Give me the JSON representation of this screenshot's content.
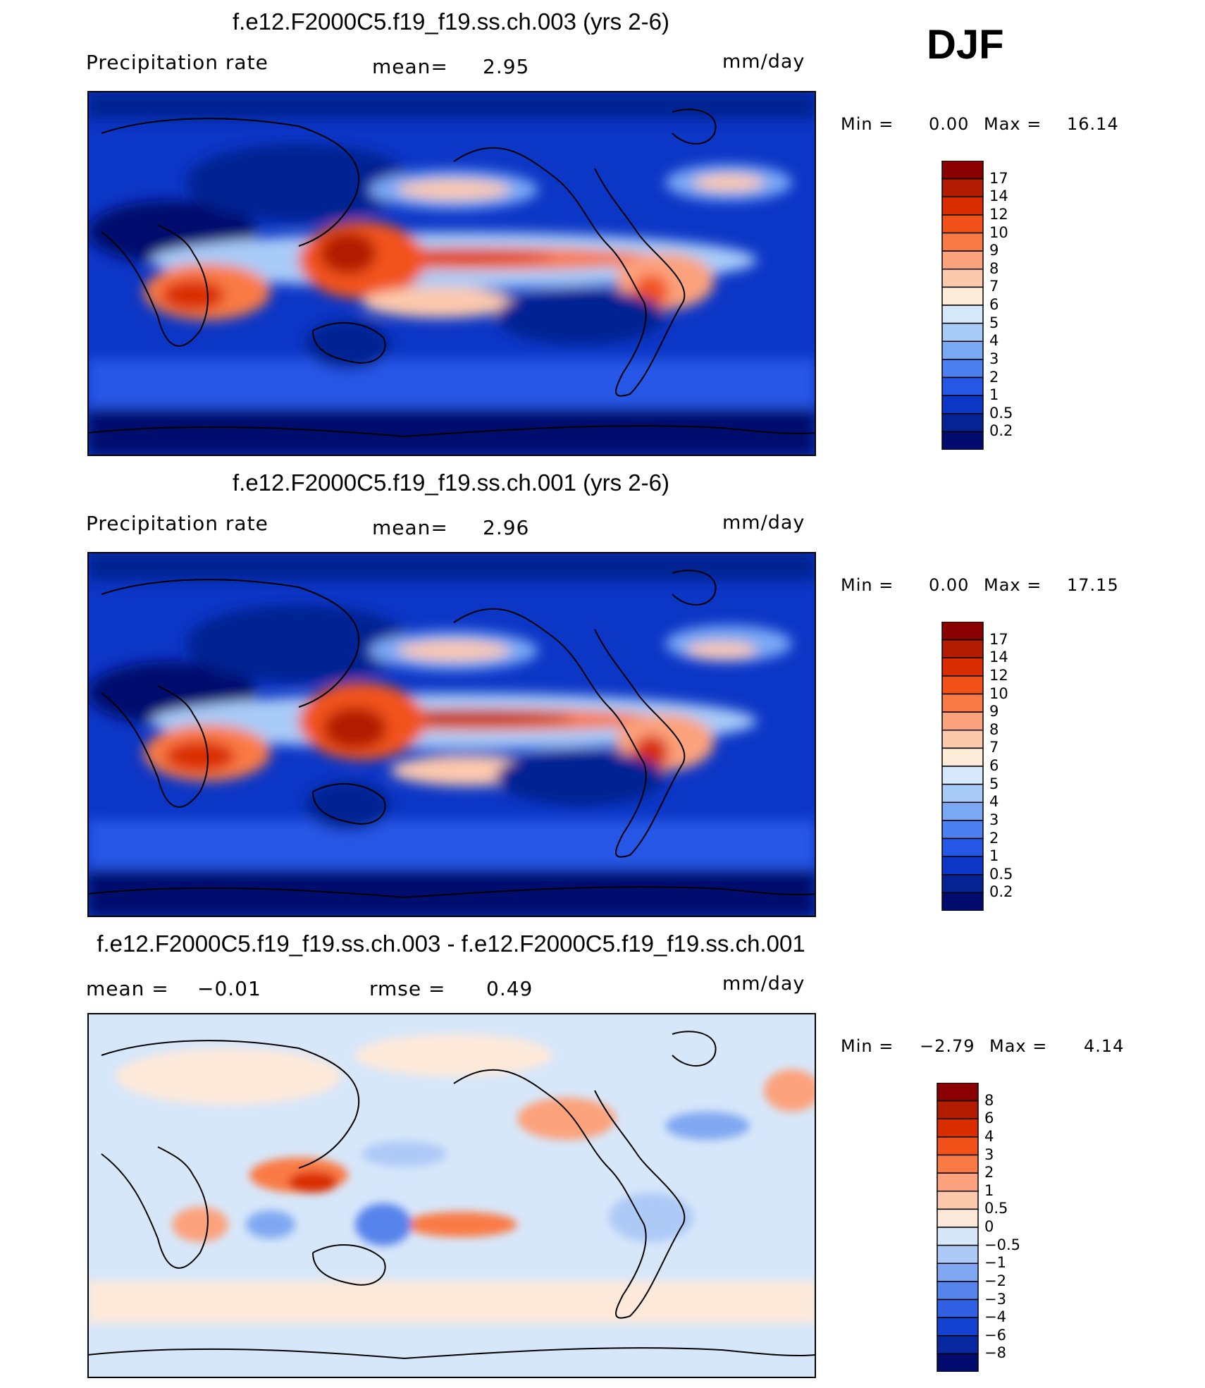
{
  "season": "DJF",
  "panels": [
    {
      "title": "f.e12.F2000C5.f19_f19.ss.ch.003 (yrs 2-6)",
      "variable": "Precipitation rate",
      "stat1_label": "mean=",
      "stat1_value": "2.95",
      "stat2_label": "",
      "stat2_value": "",
      "units": "mm/day",
      "min_label": "Min =",
      "min_value": "0.00",
      "max_label": "Max =",
      "max_value": "16.14",
      "colorbar_ticks": [
        "17",
        "14",
        "12",
        "10",
        "9",
        "8",
        "7",
        "6",
        "5",
        "4",
        "3",
        "2",
        "1",
        "0.5",
        "0.2"
      ]
    },
    {
      "title": "f.e12.F2000C5.f19_f19.ss.ch.001 (yrs 2-6)",
      "variable": "Precipitation rate",
      "stat1_label": "mean=",
      "stat1_value": "2.96",
      "stat2_label": "",
      "stat2_value": "",
      "units": "mm/day",
      "min_label": "Min =",
      "min_value": "0.00",
      "max_label": "Max =",
      "max_value": "17.15",
      "colorbar_ticks": [
        "17",
        "14",
        "12",
        "10",
        "9",
        "8",
        "7",
        "6",
        "5",
        "4",
        "3",
        "2",
        "1",
        "0.5",
        "0.2"
      ]
    },
    {
      "title": "f.e12.F2000C5.f19_f19.ss.ch.003 - f.e12.F2000C5.f19_f19.ss.ch.001",
      "variable": "",
      "stat1_label": "mean =",
      "stat1_value": "−0.01",
      "stat2_label": "rmse =",
      "stat2_value": "0.49",
      "units": "mm/day",
      "min_label": "Min =",
      "min_value": "−2.79",
      "max_label": "Max =",
      "max_value": "4.14",
      "colorbar_ticks": [
        "8",
        "6",
        "4",
        "3",
        "2",
        "1",
        "0.5",
        "0",
        "−0.5",
        "−1",
        "−2",
        "−3",
        "−4",
        "−6",
        "−8"
      ]
    }
  ],
  "colors": {
    "precip_scale": [
      "#8b0000",
      "#b31b00",
      "#d92d00",
      "#f2521a",
      "#fa7a45",
      "#fca27c",
      "#fdc9ad",
      "#fdecd8",
      "#d6e8fb",
      "#a9cbf8",
      "#7aa8f5",
      "#4c80f0",
      "#2556e6",
      "#0c36c6",
      "#052392",
      "#020c6e"
    ],
    "diff_scale": [
      "#8b0000",
      "#b31b00",
      "#d92d00",
      "#f2521a",
      "#fa7a45",
      "#fca27c",
      "#fdc9ad",
      "#fde9d9",
      "#d7e7fa",
      "#adc9f6",
      "#80a8f2",
      "#5683ec",
      "#3160e4",
      "#1442d0",
      "#0728a0",
      "#020c6e"
    ]
  },
  "chart_data": [
    {
      "type": "heatmap",
      "title": "f.e12.F2000C5.f19_f19.ss.ch.003 (yrs 2-6)",
      "subtitle": "Precipitation rate",
      "units": "mm/day",
      "mean": 2.95,
      "min": 0.0,
      "max": 16.14,
      "levels": [
        0.2,
        0.5,
        1,
        2,
        3,
        4,
        5,
        6,
        7,
        8,
        9,
        10,
        12,
        14,
        17
      ]
    },
    {
      "type": "heatmap",
      "title": "f.e12.F2000C5.f19_f19.ss.ch.001 (yrs 2-6)",
      "subtitle": "Precipitation rate",
      "units": "mm/day",
      "mean": 2.96,
      "min": 0.0,
      "max": 17.15,
      "levels": [
        0.2,
        0.5,
        1,
        2,
        3,
        4,
        5,
        6,
        7,
        8,
        9,
        10,
        12,
        14,
        17
      ]
    },
    {
      "type": "heatmap",
      "title": "f.e12.F2000C5.f19_f19.ss.ch.003 - f.e12.F2000C5.f19_f19.ss.ch.001",
      "units": "mm/day",
      "mean": -0.01,
      "rmse": 0.49,
      "min": -2.79,
      "max": 4.14,
      "levels": [
        -8,
        -6,
        -4,
        -3,
        -2,
        -1,
        -0.5,
        0,
        0.5,
        1,
        2,
        3,
        4,
        6,
        8
      ]
    }
  ]
}
